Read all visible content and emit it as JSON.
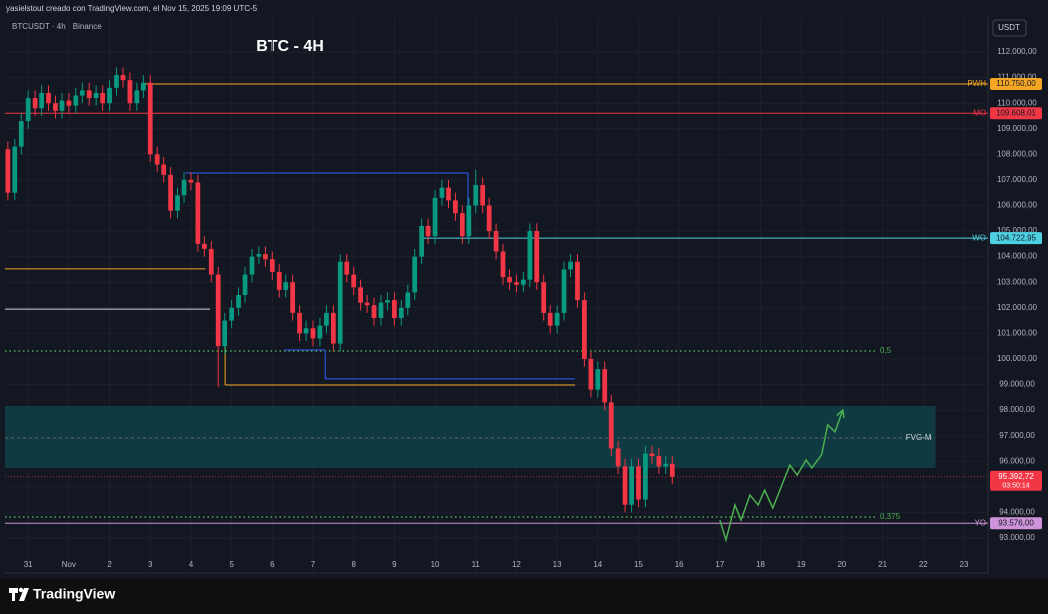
{
  "chart_data": {
    "type": "candlestick",
    "header": "yasielstout creado con TradingView.com, el Nov 15, 2025 19:09 UTC-5",
    "symbol": "BTCUSDT · 4h · Binance",
    "title": "BTC - 4H",
    "currency": "USDT",
    "brand": "TradingView",
    "up_color": "#089981",
    "down_color": "#f23645",
    "grid": true,
    "xlim": [
      -0.57,
      23.59
    ],
    "xticks": [
      {
        "value": 0,
        "label": "31"
      },
      {
        "value": 1,
        "label": "Nov"
      },
      2,
      3,
      4,
      5,
      6,
      7,
      8,
      9,
      10,
      11,
      12,
      13,
      14,
      15,
      16,
      17,
      18,
      19,
      20,
      21,
      22,
      23
    ],
    "ylim": [
      91630,
      113370
    ],
    "yticks": [
      {
        "value": 93000,
        "label": "93.000,00"
      },
      {
        "value": 94000,
        "label": "94.000,00"
      },
      {
        "value": 95000,
        "label": "95.000,00"
      },
      {
        "value": 96000,
        "label": "96.000,00"
      },
      {
        "value": 97000,
        "label": "97.000,00"
      },
      {
        "value": 98000,
        "label": "98.000,00"
      },
      {
        "value": 99000,
        "label": "99.000,00"
      },
      {
        "value": 100000,
        "label": "100.000,00"
      },
      {
        "value": 101000,
        "label": "101.000,00"
      },
      {
        "value": 102000,
        "label": "102.000,00"
      },
      {
        "value": 103000,
        "label": "103.000,00"
      },
      {
        "value": 104000,
        "label": "104.000,00"
      },
      {
        "value": 105000,
        "label": "105.000,00"
      },
      {
        "value": 106000,
        "label": "106.000,00"
      },
      {
        "value": 107000,
        "label": "107.000,00"
      },
      {
        "value": 108000,
        "label": "108.000,00"
      },
      {
        "value": 109000,
        "label": "109.000,00"
      },
      {
        "value": 110000,
        "label": "110.000,00"
      },
      {
        "value": 111000,
        "label": "111.000,00"
      },
      {
        "value": 112000,
        "label": "112.000,00"
      }
    ],
    "x": [
      -0.5,
      -0.33,
      -0.17,
      0,
      0.17,
      0.33,
      0.5,
      0.67,
      0.83,
      1,
      1.17,
      1.33,
      1.5,
      1.67,
      1.83,
      2,
      2.17,
      2.33,
      2.5,
      2.67,
      2.83,
      3,
      3.17,
      3.33,
      3.5,
      3.67,
      3.83,
      4,
      4.17,
      4.33,
      4.5,
      4.67,
      4.83,
      5,
      5.17,
      5.33,
      5.5,
      5.67,
      5.83,
      6,
      6.17,
      6.33,
      6.5,
      6.67,
      6.83,
      7,
      7.17,
      7.33,
      7.5,
      7.67,
      7.83,
      8,
      8.17,
      8.33,
      8.5,
      8.67,
      8.83,
      9,
      9.17,
      9.33,
      9.5,
      9.67,
      9.83,
      10,
      10.17,
      10.33,
      10.5,
      10.67,
      10.83,
      11,
      11.17,
      11.33,
      11.5,
      11.67,
      11.83,
      12,
      12.17,
      12.33,
      12.5,
      12.67,
      12.83,
      13,
      13.17,
      13.33,
      13.5,
      13.67,
      13.83,
      14,
      14.17,
      14.33,
      14.5,
      14.67,
      14.83,
      15,
      15.17,
      15.33,
      15.5,
      15.67,
      15.83
    ],
    "open": [
      108200,
      106500,
      108300,
      109300,
      110200,
      109800,
      110400,
      110000,
      109700,
      110100,
      109900,
      110300,
      110500,
      110200,
      110400,
      110000,
      110600,
      111100,
      110900,
      110000,
      110500,
      110800,
      108000,
      107600,
      107200,
      105800,
      106400,
      107000,
      106900,
      104500,
      104300,
      103300,
      100500,
      101500,
      102000,
      102500,
      103300,
      104000,
      104100,
      103900,
      103400,
      102700,
      103000,
      101800,
      101000,
      101200,
      100800,
      101300,
      101800,
      100600,
      103800,
      103300,
      102800,
      102200,
      102100,
      101600,
      102200,
      102300,
      101600,
      102000,
      102600,
      104000,
      105200,
      104800,
      106300,
      106700,
      106200,
      105700,
      104800,
      106000,
      106800,
      106000,
      105000,
      104200,
      103200,
      103000,
      102900,
      103100,
      105000,
      103000,
      101800,
      101300,
      101800,
      103500,
      103800,
      102300,
      100000,
      98800,
      99600,
      98300,
      96500,
      95800,
      94300,
      95800,
      94500,
      96300,
      96200,
      95800,
      95900
    ],
    "high": [
      108500,
      108600,
      109600,
      110500,
      110500,
      110700,
      110700,
      110300,
      110400,
      110400,
      110600,
      110800,
      110800,
      110700,
      110700,
      110900,
      111400,
      111400,
      111200,
      110800,
      111100,
      111100,
      108300,
      107900,
      107500,
      106700,
      107300,
      107300,
      107200,
      104800,
      104600,
      103600,
      101800,
      102300,
      102800,
      103600,
      104300,
      104400,
      104400,
      104200,
      103700,
      103300,
      103300,
      102100,
      101500,
      101500,
      101600,
      102100,
      102100,
      104100,
      104100,
      103600,
      103100,
      102500,
      102400,
      102500,
      102600,
      102600,
      102300,
      102900,
      104300,
      105500,
      105500,
      106600,
      107000,
      107000,
      106500,
      106000,
      106300,
      107400,
      107100,
      106300,
      105300,
      104500,
      103500,
      103300,
      103400,
      105300,
      105300,
      103300,
      102100,
      102100,
      103800,
      104100,
      104100,
      102600,
      100300,
      99900,
      99900,
      98600,
      96800,
      96100,
      96100,
      96100,
      96600,
      96600,
      96500,
      96200,
      96200
    ],
    "low": [
      106200,
      106200,
      108000,
      109000,
      109500,
      109500,
      109700,
      109400,
      109400,
      109600,
      109600,
      110000,
      109900,
      109900,
      109700,
      109700,
      110300,
      110600,
      109700,
      109700,
      110200,
      107700,
      107300,
      106900,
      105500,
      105500,
      106100,
      106600,
      104200,
      104000,
      103000,
      98900,
      100200,
      101200,
      101700,
      102200,
      103000,
      103700,
      103600,
      103100,
      102400,
      102400,
      101500,
      100700,
      100700,
      100500,
      100500,
      101000,
      100300,
      100300,
      103000,
      102500,
      101900,
      101800,
      101300,
      101300,
      101900,
      101300,
      101300,
      101700,
      102300,
      103700,
      104500,
      104500,
      106000,
      105900,
      105400,
      104500,
      104500,
      105700,
      105700,
      104700,
      103900,
      102900,
      102700,
      102600,
      102600,
      102800,
      102700,
      101500,
      101000,
      101000,
      101500,
      103200,
      102000,
      99700,
      98500,
      98500,
      98000,
      96200,
      95500,
      94000,
      94000,
      94200,
      94200,
      95900,
      95500,
      95500,
      95100
    ],
    "close": [
      106500,
      108300,
      109300,
      110200,
      109800,
      110400,
      110000,
      109700,
      110100,
      109900,
      110300,
      110500,
      110200,
      110400,
      110000,
      110600,
      111100,
      110900,
      110000,
      110500,
      110800,
      108000,
      107600,
      107200,
      105800,
      106400,
      107000,
      106900,
      104500,
      104300,
      103300,
      100500,
      101500,
      102000,
      102500,
      103300,
      104000,
      104100,
      103900,
      103400,
      102700,
      103000,
      101800,
      101000,
      101200,
      100800,
      101300,
      101800,
      100600,
      103800,
      103300,
      102800,
      102200,
      102100,
      101600,
      102200,
      102300,
      101600,
      102000,
      102600,
      104000,
      105200,
      104800,
      106300,
      106700,
      106200,
      105700,
      104800,
      106000,
      106800,
      106000,
      105000,
      104200,
      103200,
      103000,
      102900,
      103100,
      105000,
      103000,
      101800,
      101300,
      101800,
      103500,
      103800,
      102300,
      100000,
      98800,
      99600,
      98300,
      96500,
      95800,
      94300,
      95800,
      94500,
      96300,
      96200,
      95800,
      95900,
      95392.72
    ],
    "levels": [
      {
        "name": "PWH",
        "value": 110750,
        "label": "110.750,00",
        "color": "#f5a623",
        "from": 2.82
      },
      {
        "name": "MO",
        "value": 109608.01,
        "label": "109.608,01",
        "color": "#f23645",
        "from": -0.57
      },
      {
        "name": "WO",
        "value": 104722.95,
        "label": "104.722,95",
        "color": "#4dd0e1",
        "from": 9.63
      },
      {
        "name": "YO",
        "value": 93576,
        "label": "93.576,00",
        "color": "#ce93d8",
        "from": -0.57
      }
    ],
    "current": {
      "value": 95392.72,
      "label": "95.392,72",
      "countdown": "03:50:14",
      "color": "#f23645"
    },
    "fib": [
      {
        "label": "0,5",
        "value": 100310
      },
      {
        "label": "0,375",
        "value": 93820
      }
    ],
    "fib_color": "#4caf50",
    "zone": {
      "name": "FVG-M",
      "top": 98160,
      "bottom": 95740,
      "mid": 96910,
      "to": 22.3,
      "color": "#0f3a42"
    },
    "drawings": [
      {
        "color": "#2962ff",
        "x": [
          3.86,
          10.81
        ],
        "y": [
          107270,
          107270
        ]
      },
      {
        "color": "#2962ff",
        "x": [
          10.81,
          10.81
        ],
        "y": [
          107270,
          104720
        ]
      },
      {
        "color": "#f5a623",
        "x": [
          -0.57,
          4.35
        ],
        "y": [
          103520,
          103520
        ]
      },
      {
        "color": "#d1d4dc",
        "x": [
          -0.57,
          4.47
        ],
        "y": [
          101950,
          101950
        ]
      },
      {
        "color": "#f5a623",
        "x": [
          4.84,
          13.44
        ],
        "y": [
          98980,
          98980
        ]
      },
      {
        "color": "#f5a623",
        "x": [
          4.84,
          4.84
        ],
        "y": [
          101050,
          98980
        ]
      },
      {
        "color": "#2962ff",
        "x": [
          7.3,
          13.44
        ],
        "y": [
          99220,
          99220
        ]
      },
      {
        "color": "#2962ff",
        "x": [
          7.3,
          7.3
        ],
        "y": [
          100350,
          99220
        ]
      },
      {
        "color": "#2962ff",
        "x": [
          6.3,
          7.3
        ],
        "y": [
          100350,
          100350
        ]
      }
    ],
    "projection": {
      "color": "#4caf50",
      "x": [
        17.0,
        17.15,
        17.37,
        17.52,
        17.74,
        17.94,
        18.1,
        18.3,
        18.72,
        18.9,
        19.12,
        19.26,
        19.5,
        19.65,
        19.83,
        20.02
      ],
      "y": [
        93700,
        92920,
        94290,
        93700,
        94680,
        94290,
        94870,
        94170,
        95850,
        95460,
        96050,
        95740,
        96250,
        97420,
        97150,
        98000
      ]
    }
  }
}
